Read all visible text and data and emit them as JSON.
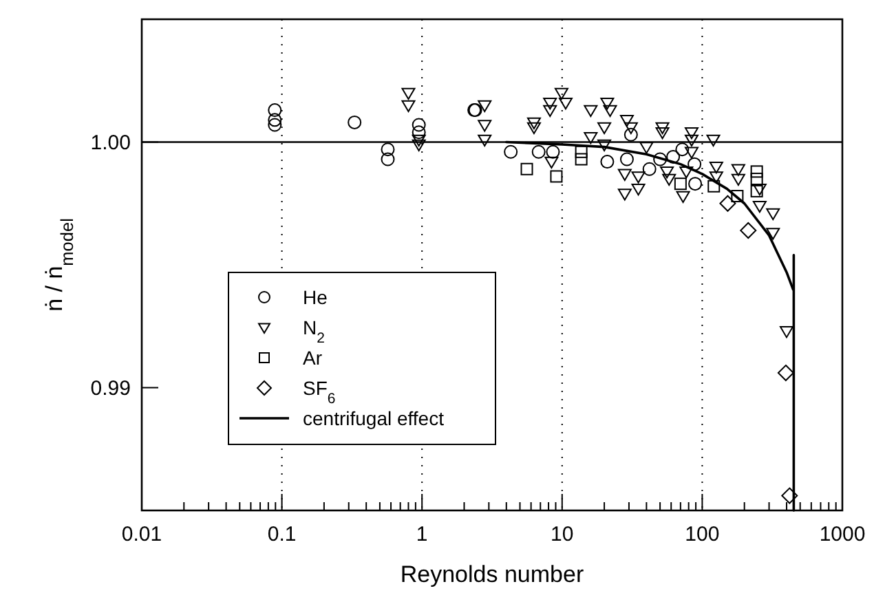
{
  "chart_data": {
    "type": "scatter",
    "xlabel": "Reynolds number",
    "ylabel": "ṅ / ṅ$_{model}$",
    "log": "x",
    "grid": "x",
    "legend": "bottom left",
    "xlim": [
      0.01,
      1000
    ],
    "ylim": [
      0.985,
      1.005
    ],
    "xticks": [
      0.01,
      {
        "value": 0.02,
        "label": null
      },
      {
        "value": 0.03,
        "label": null
      },
      {
        "value": 0.04,
        "label": null
      },
      {
        "value": 0.05,
        "label": null
      },
      {
        "value": 0.06,
        "label": null
      },
      {
        "value": 0.07,
        "label": null
      },
      {
        "value": 0.08,
        "label": null
      },
      {
        "value": 0.09,
        "label": null
      },
      0.1,
      {
        "value": 0.2,
        "label": null
      },
      {
        "value": 0.3,
        "label": null
      },
      {
        "value": 0.4,
        "label": null
      },
      {
        "value": 0.5,
        "label": null
      },
      {
        "value": 0.6,
        "label": null
      },
      {
        "value": 0.7,
        "label": null
      },
      {
        "value": 0.8,
        "label": null
      },
      {
        "value": 0.9,
        "label": null
      },
      1,
      {
        "value": 2,
        "label": null
      },
      {
        "value": 3,
        "label": null
      },
      {
        "value": 4,
        "label": null
      },
      {
        "value": 5,
        "label": null
      },
      {
        "value": 6,
        "label": null
      },
      {
        "value": 7,
        "label": null
      },
      {
        "value": 8,
        "label": null
      },
      {
        "value": 9,
        "label": null
      },
      10,
      {
        "value": 20,
        "label": null
      },
      {
        "value": 30,
        "label": null
      },
      {
        "value": 40,
        "label": null
      },
      {
        "value": 50,
        "label": null
      },
      {
        "value": 60,
        "label": null
      },
      {
        "value": 70,
        "label": null
      },
      {
        "value": 80,
        "label": null
      },
      {
        "value": 90,
        "label": null
      },
      100,
      {
        "value": 200,
        "label": null
      },
      {
        "value": 300,
        "label": null
      },
      {
        "value": 400,
        "label": null
      },
      {
        "value": 500,
        "label": null
      },
      {
        "value": 600,
        "label": null
      },
      {
        "value": 700,
        "label": null
      },
      {
        "value": 800,
        "label": null
      },
      {
        "value": 900,
        "label": null
      },
      1000
    ],
    "yticks": [
      {
        "value": 0.99,
        "label": "0.99"
      },
      {
        "value": 1,
        "label": "1.00"
      }
    ],
    "ref_lines": [
      {
        "axis": "y",
        "value": 1,
        "color": "#000000"
      }
    ],
    "series": [
      {
        "name": "He",
        "color": "#000000",
        "marker": "circle",
        "x": [
          0.089,
          0.089,
          0.089,
          0.33,
          0.57,
          0.57,
          0.95,
          0.95,
          2.36,
          2.4,
          4.3,
          6.8,
          8.6,
          21,
          31,
          29,
          42,
          50,
          62,
          72,
          88,
          89
        ],
        "values": [
          1.0013,
          1.0009,
          1.0007,
          1.0008,
          0.9997,
          0.9993,
          1.0007,
          1.0004,
          1.0013,
          1.0013,
          0.9996,
          0.9996,
          0.9996,
          0.9992,
          1.0003,
          0.9993,
          0.9989,
          0.9993,
          0.9994,
          0.9997,
          0.9991,
          0.9983
        ]
      },
      {
        "name": "N$_{2}$",
        "color": "#000000",
        "marker": "triangle",
        "x": [
          0.8,
          0.8,
          0.95,
          0.95,
          2.8,
          2.8,
          2.8,
          6.3,
          6.3,
          8.4,
          8.2,
          8.2,
          9.9,
          10.6,
          16,
          21,
          22,
          20,
          16,
          20,
          29,
          31,
          28,
          28,
          35,
          35,
          40,
          52,
          52,
          56,
          58,
          73,
          84,
          84,
          84,
          77,
          120,
          126,
          126,
          181,
          181,
          257,
          257,
          320,
          320,
          400
        ],
        "values": [
          1.002,
          1.0015,
          1.0001,
          0.9999,
          1.0015,
          1.0007,
          1.0001,
          1.0008,
          1.0006,
          0.9992,
          1.0016,
          1.0013,
          1.002,
          1.0016,
          1.0013,
          1.0016,
          1.0013,
          1.0006,
          1.0002,
          0.9999,
          1.0009,
          1.0006,
          0.9987,
          0.9979,
          0.9986,
          0.9981,
          0.9998,
          1.0006,
          1.0004,
          0.9988,
          0.9985,
          0.9978,
          1.0004,
          1.0001,
          0.9996,
          0.9988,
          1.0001,
          0.999,
          0.9986,
          0.9989,
          0.9985,
          0.9981,
          0.9974,
          0.9971,
          0.9963,
          0.9923
        ]
      },
      {
        "name": "Ar",
        "color": "#000000",
        "marker": "square",
        "x": [
          5.6,
          9.1,
          13.7,
          13.7,
          70,
          121,
          178,
          245,
          245,
          245
        ],
        "values": [
          0.9989,
          0.9986,
          0.9996,
          0.9993,
          0.9983,
          0.9982,
          0.9978,
          0.9988,
          0.9985,
          0.998
        ]
      },
      {
        "name": "SF$_{6}$",
        "color": "#000000",
        "marker": "diamond",
        "x": [
          152,
          213,
          395,
          420
        ],
        "values": [
          0.9975,
          0.9964,
          0.9906,
          0.9856
        ]
      },
      {
        "name": "centrifugal effect",
        "type": "line",
        "color": "#000000",
        "marker": "none",
        "x": [
          4,
          10,
          20,
          40,
          70,
          100,
          150,
          200,
          300,
          400,
          445
        ],
        "values": [
          1.0,
          0.9999,
          0.9998,
          0.9995,
          0.9991,
          0.9987,
          0.9981,
          0.9975,
          0.9962,
          0.9947,
          0.994
        ]
      },
      {
        "type": "line",
        "color": "#000000",
        "marker": "none",
        "x": [
          450,
          450
        ],
        "values": [
          0.9954,
          0.985
        ]
      }
    ]
  }
}
